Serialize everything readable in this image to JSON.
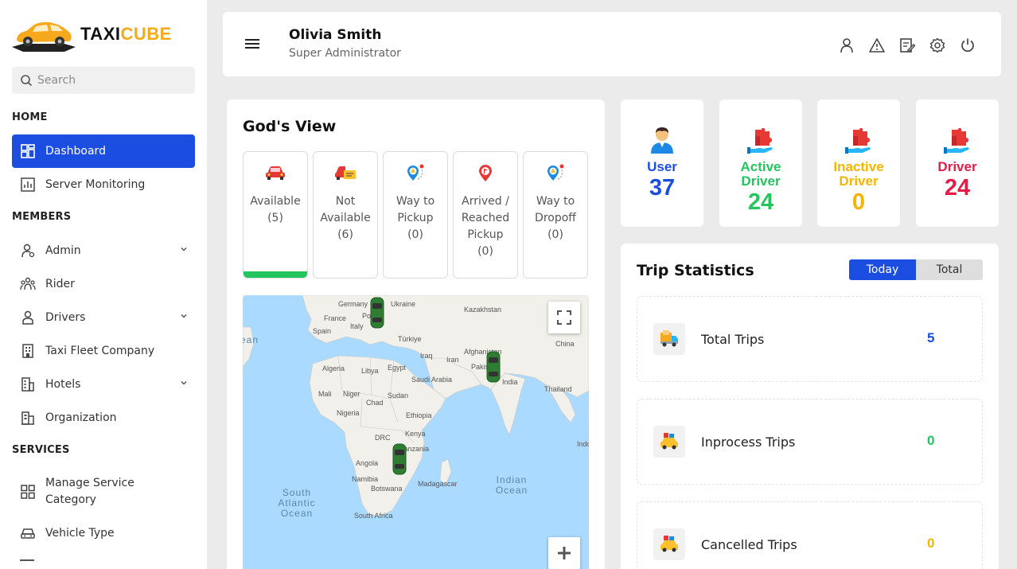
{
  "brand": {
    "part1": "TAXI",
    "part2": "CUBE"
  },
  "search": {
    "placeholder": "Search"
  },
  "sidebar": {
    "sections": {
      "home": "HOME",
      "members": "MEMBERS",
      "services": "SERVICES"
    },
    "items": [
      {
        "label": "Dashboard",
        "icon": "dashboard-icon",
        "active": true
      },
      {
        "label": "Server Monitoring",
        "icon": "chart-icon"
      },
      {
        "label": "Admin",
        "icon": "admin-icon",
        "expandable": true
      },
      {
        "label": "Rider",
        "icon": "group-icon"
      },
      {
        "label": "Drivers",
        "icon": "person-icon",
        "expandable": true
      },
      {
        "label": "Taxi Fleet Company",
        "icon": "building-icon"
      },
      {
        "label": "Hotels",
        "icon": "hotel-icon",
        "expandable": true
      },
      {
        "label": "Organization",
        "icon": "organization-icon"
      },
      {
        "label": "Manage Service Category",
        "icon": "grid-icon"
      },
      {
        "label": "Vehicle Type",
        "icon": "car-icon"
      }
    ]
  },
  "header": {
    "name": "Olivia Smith",
    "role": "Super Administrator",
    "icons": [
      "profile-icon",
      "alert-icon",
      "edit-icon",
      "settings-icon",
      "power-icon"
    ]
  },
  "gods_view": {
    "title": "God's View",
    "statuses": [
      {
        "label": "Available",
        "count": "(5)",
        "selected": true
      },
      {
        "label": "Not Available",
        "count": "(6)"
      },
      {
        "label": "Way to Pickup",
        "count": "(0)"
      },
      {
        "label": "Arrived / Reached Pickup",
        "count": "(0)"
      },
      {
        "label": "Way to Dropoff",
        "count": "(0)"
      }
    ],
    "map": {
      "labels": [
        "Germany",
        "Ukraine",
        "Kazakhstan",
        "France",
        "Poland",
        "Spain",
        "Italy",
        "Türkiye",
        "China",
        "Afghanistan",
        "Iraq",
        "Iran",
        "Pakistan",
        "Algeria",
        "Libya",
        "Egypt",
        "Saudi Arabia",
        "India",
        "Thailand",
        "Mali",
        "Niger",
        "Sudan",
        "Chad",
        "Nigeria",
        "Ethiopia",
        "Kenya",
        "DRC",
        "Tanzania",
        "Angola",
        "Namibia",
        "Botswana",
        "Madagascar",
        "South Africa",
        "Indo"
      ],
      "oceans": [
        "South Atlantic Ocean",
        "Indian Ocean",
        "North Atlantic Ocean"
      ],
      "marker_count": 3
    }
  },
  "stats": [
    {
      "label": "User",
      "value": "37",
      "color": "#1b4ee0"
    },
    {
      "label": "Active Driver",
      "value": "24",
      "color": "#22c55e"
    },
    {
      "label": "Inactive Driver",
      "value": "0",
      "color": "#f4b400"
    },
    {
      "label": "Driver",
      "value": "24",
      "color": "#e11d48"
    }
  ],
  "trip_stats": {
    "title": "Trip Statistics",
    "toggle": {
      "today": "Today",
      "total": "Total"
    },
    "rows": [
      {
        "label": "Total Trips",
        "value": "5",
        "color": "#1b4ee0"
      },
      {
        "label": "Inprocess Trips",
        "value": "0",
        "color": "#22c55e"
      },
      {
        "label": "Cancelled Trips",
        "value": "0",
        "color": "#f4b400"
      }
    ]
  }
}
